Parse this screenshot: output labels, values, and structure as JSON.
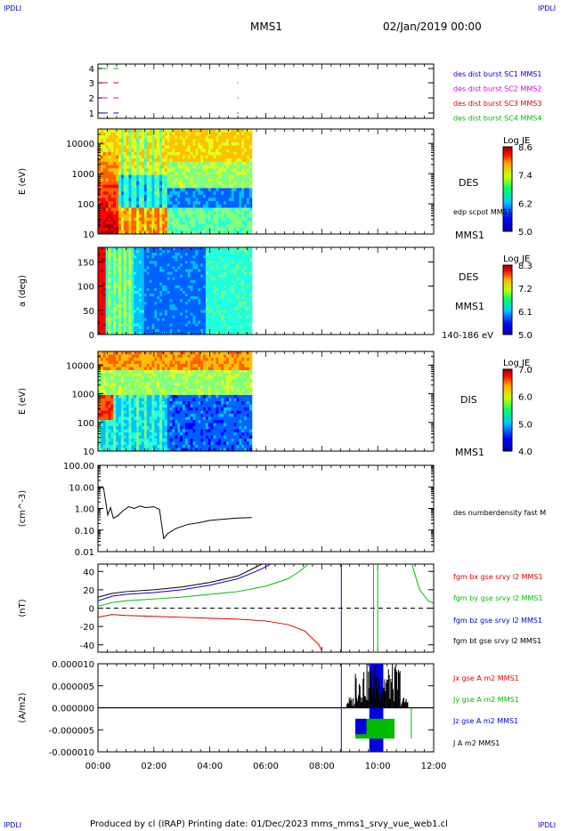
{
  "header": {
    "corner_tl": "IPDLI",
    "corner_tr": "IPDLI",
    "corner_bl": "IPDLI",
    "corner_br": "IPDLI",
    "title": "MMS1",
    "date": "02/Jan/2019 00:00",
    "footer": "Produced by cl (IRAP)   Printing date: 01/Dec/2023   mms_mms1_srvy_vue_web1.cl"
  },
  "colors": {
    "blue": "#0000dd",
    "magenta": "#dd00dd",
    "red": "#dd0000",
    "green": "#00bb00",
    "black": "#000000"
  },
  "chart_data": [
    {
      "type": "scatter",
      "id": "availability",
      "yticks": [
        "4",
        "3",
        "2",
        "1"
      ],
      "series": [
        {
          "name": "des dist burst SC1 MMS1",
          "color": "#0000dd",
          "y": 1
        },
        {
          "name": "des dist burst SC2 MMS2",
          "color": "#dd00dd",
          "y": 2
        },
        {
          "name": "des dist burst SC3 MMS3",
          "color": "#dd0000",
          "y": 3
        },
        {
          "name": "des dist burst SC4 MMS4",
          "color": "#00bb00",
          "y": 4
        }
      ],
      "marks_hours": [
        0.25,
        0.65
      ]
    },
    {
      "type": "heatmap",
      "id": "des-energy",
      "ylabel": "E (eV)",
      "yscale": "log",
      "ylim": [
        10,
        30000
      ],
      "yticks": [
        "10000",
        "1000",
        "100",
        "10"
      ],
      "right_labels": [
        "DES",
        "edp scpot MMS1",
        "MMS1"
      ],
      "colorbar": {
        "title": "Log JE",
        "ticks": [
          "8.6",
          "7.4",
          "6.2",
          "5.0"
        ],
        "range": [
          5.0,
          8.6
        ]
      },
      "data_end_hours": 5.5
    },
    {
      "type": "heatmap",
      "id": "des-pitch",
      "ylabel": "a (deg)",
      "ylim": [
        0,
        180
      ],
      "yticks": [
        "150",
        "100",
        "50",
        "0"
      ],
      "right_labels": [
        "DES",
        "MMS1",
        "140-186 eV"
      ],
      "colorbar": {
        "title": "Log JE",
        "ticks": [
          "8.3",
          "7.2",
          "6.1",
          "5.0"
        ],
        "range": [
          5.0,
          8.3
        ]
      },
      "data_end_hours": 5.5
    },
    {
      "type": "heatmap",
      "id": "dis-energy",
      "ylabel": "E (eV)",
      "yscale": "log",
      "ylim": [
        10,
        30000
      ],
      "yticks": [
        "10000",
        "1000",
        "100",
        "10"
      ],
      "right_labels": [
        "DIS",
        "MMS1"
      ],
      "colorbar": {
        "title": "Log JE",
        "ticks": [
          "7.0",
          "6.0",
          "5.0",
          "4.0"
        ],
        "range": [
          4.0,
          7.0
        ]
      },
      "data_end_hours": 5.5
    },
    {
      "type": "line",
      "id": "density",
      "ylabel": "(cm^-3)",
      "yscale": "log",
      "ylim": [
        0.01,
        100
      ],
      "yticks": [
        "100.00",
        "10.00",
        "1.00",
        "0.10",
        "0.01"
      ],
      "series": [
        {
          "name": "des numberdensity fast M",
          "color": "#000000",
          "x": [
            0,
            0.2,
            0.35,
            0.45,
            0.55,
            0.7,
            0.9,
            1.1,
            1.3,
            1.5,
            1.7,
            2.0,
            2.2,
            2.35,
            2.5,
            2.8,
            3.2,
            3.6,
            4.0,
            4.5,
            5.0,
            5.5
          ],
          "y": [
            10,
            9,
            0.5,
            1.1,
            0.35,
            0.45,
            0.8,
            1.2,
            1.0,
            1.3,
            1.1,
            1.2,
            0.9,
            0.04,
            0.07,
            0.12,
            0.18,
            0.22,
            0.28,
            0.32,
            0.36,
            0.38
          ]
        }
      ]
    },
    {
      "type": "line",
      "id": "magnetic-field",
      "ylabel": "(nT)",
      "ylim": [
        -48,
        48
      ],
      "yticks": [
        "40",
        "20",
        "0",
        "-20",
        "-40"
      ],
      "series": [
        {
          "name": "fgm bx gse srvy l2 MMS1",
          "color": "#dd0000",
          "x": [
            0,
            0.5,
            1,
            2,
            3,
            4,
            5,
            6,
            6.8,
            7.4,
            7.9,
            8.05
          ],
          "y": [
            -10,
            -7,
            -8,
            -9,
            -10,
            -11,
            -12,
            -14,
            -18,
            -25,
            -40,
            -50
          ]
        },
        {
          "name": "fgm by gse srvy l2 MMS1",
          "color": "#00bb00",
          "x": [
            0,
            0.5,
            1,
            2,
            3,
            4,
            5,
            6,
            6.8,
            7.2,
            7.6
          ],
          "y": [
            2,
            6,
            8,
            10,
            12,
            15,
            18,
            24,
            32,
            40,
            50
          ]
        },
        {
          "name": "fgm bz gse srvy l2 MMS1",
          "color": "#0000dd",
          "x": [
            0,
            0.5,
            1,
            2,
            3,
            4,
            5,
            5.8,
            6.3
          ],
          "y": [
            8,
            13,
            15,
            17,
            20,
            25,
            32,
            42,
            50
          ]
        },
        {
          "name": "fgm bt gse srvy l2 MMS1",
          "color": "#000000",
          "x": [
            0,
            0.5,
            1,
            2,
            3,
            4,
            5,
            5.6,
            6.0
          ],
          "y": [
            12,
            16,
            18,
            20,
            23,
            28,
            35,
            44,
            50
          ]
        }
      ],
      "late_segments": {
        "blue_vline": 8.7,
        "green_vlines": [
          9.85,
          10.0
        ],
        "green_tail_x": [
          11.2,
          11.5,
          11.8,
          12
        ],
        "green_tail_y": [
          50,
          20,
          8,
          5
        ]
      }
    },
    {
      "type": "line",
      "id": "current-density",
      "ylabel": "(A/m2)",
      "ylim": [
        -1e-05,
        1e-05
      ],
      "yticks": [
        "0.000010",
        "0.000005",
        "0.000000",
        "-0.000005",
        "-0.000010"
      ],
      "series": [
        {
          "name": "Jx gse A m2 MMS1",
          "color": "#dd0000"
        },
        {
          "name": "Jy gse A m2 MMS1",
          "color": "#00bb00"
        },
        {
          "name": "Jz gse A m2 MMS1",
          "color": "#0000dd"
        },
        {
          "name": "J A m2 MMS1",
          "color": "#000000"
        }
      ],
      "burst_range_hours": [
        8.6,
        11.4
      ],
      "xticks": [
        "00:00",
        "02:00",
        "04:00",
        "06:00",
        "08:00",
        "10:00",
        "12:00"
      ],
      "xlim_hours": [
        0,
        12
      ]
    }
  ]
}
